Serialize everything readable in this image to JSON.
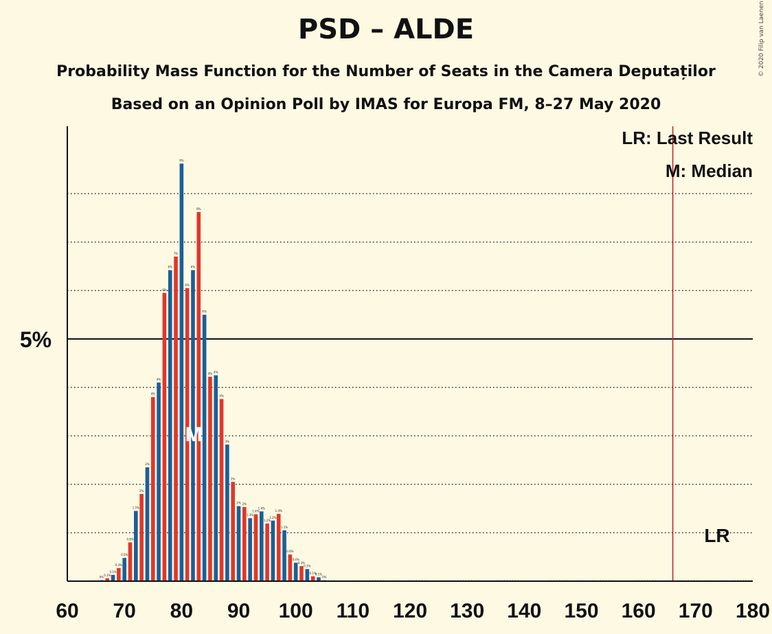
{
  "title": "PSD – ALDE",
  "subtitle1": "Probability Mass Function for the Number of Seats in the Camera Deputaților",
  "subtitle2": "Based on an Opinion Poll by IMAS for Europa FM, 8–27 May 2020",
  "copyright": "© 2020 Filip van Laenen",
  "colors": {
    "background": "#fef9e3",
    "blue": "#1a5f9a",
    "red": "#e0372b",
    "lr_line": "#c4262e"
  },
  "chart_data": {
    "type": "bar",
    "xlim": [
      60,
      180
    ],
    "ylim": [
      0,
      9.4
    ],
    "x_ticks": [
      "60",
      "70",
      "80",
      "90",
      "100",
      "110",
      "120",
      "130",
      "140",
      "150",
      "160",
      "170",
      "180"
    ],
    "y_tick_label": "5%",
    "y_major": 5,
    "y_minor_gridlines": [
      1,
      2,
      3,
      4,
      6,
      7,
      8
    ],
    "legend": [
      "LR: Last Result",
      "M: Median"
    ],
    "median_label": "M",
    "median_seat": 82,
    "last_result_label": "LR",
    "last_result_seat": 166,
    "x": [
      66,
      67,
      68,
      69,
      70,
      71,
      72,
      73,
      74,
      75,
      76,
      77,
      78,
      79,
      80,
      81,
      82,
      83,
      84,
      85,
      86,
      87,
      88,
      89,
      90,
      91,
      92,
      93,
      94,
      95,
      96,
      97,
      98,
      99,
      100,
      101,
      102,
      103,
      104,
      105
    ],
    "values": [
      0.02,
      0.06,
      0.13,
      0.27,
      0.48,
      0.8,
      1.45,
      1.8,
      2.35,
      3.8,
      4.1,
      5.95,
      6.42,
      6.7,
      8.62,
      6.05,
      6.42,
      7.62,
      5.5,
      4.22,
      4.25,
      3.76,
      2.82,
      2.05,
      1.55,
      1.53,
      1.3,
      1.38,
      1.44,
      1.19,
      1.25,
      1.39,
      1.05,
      0.55,
      0.38,
      0.31,
      0.25,
      0.1,
      0.08,
      0.02
    ],
    "data_labels": [
      "0%",
      "0.1%",
      "0.1%",
      "0.3%",
      "0.5%",
      "0.8%",
      "1.5%",
      "2%",
      "2%",
      "4%",
      "4%",
      "6%",
      "6%",
      "7%",
      "9%",
      "6%",
      "6%",
      "8%",
      "6%",
      "4%",
      "4%",
      "4%",
      "3%",
      "2%",
      "2%",
      "2%",
      "1.3%",
      "1.4%",
      "1.4%",
      "1.2%",
      "1.2%",
      "1.4%",
      "1.1%",
      "0.6%",
      "0.4%",
      "0.3%",
      "0.3%",
      "0.1%",
      "0.1%",
      "0%"
    ]
  }
}
